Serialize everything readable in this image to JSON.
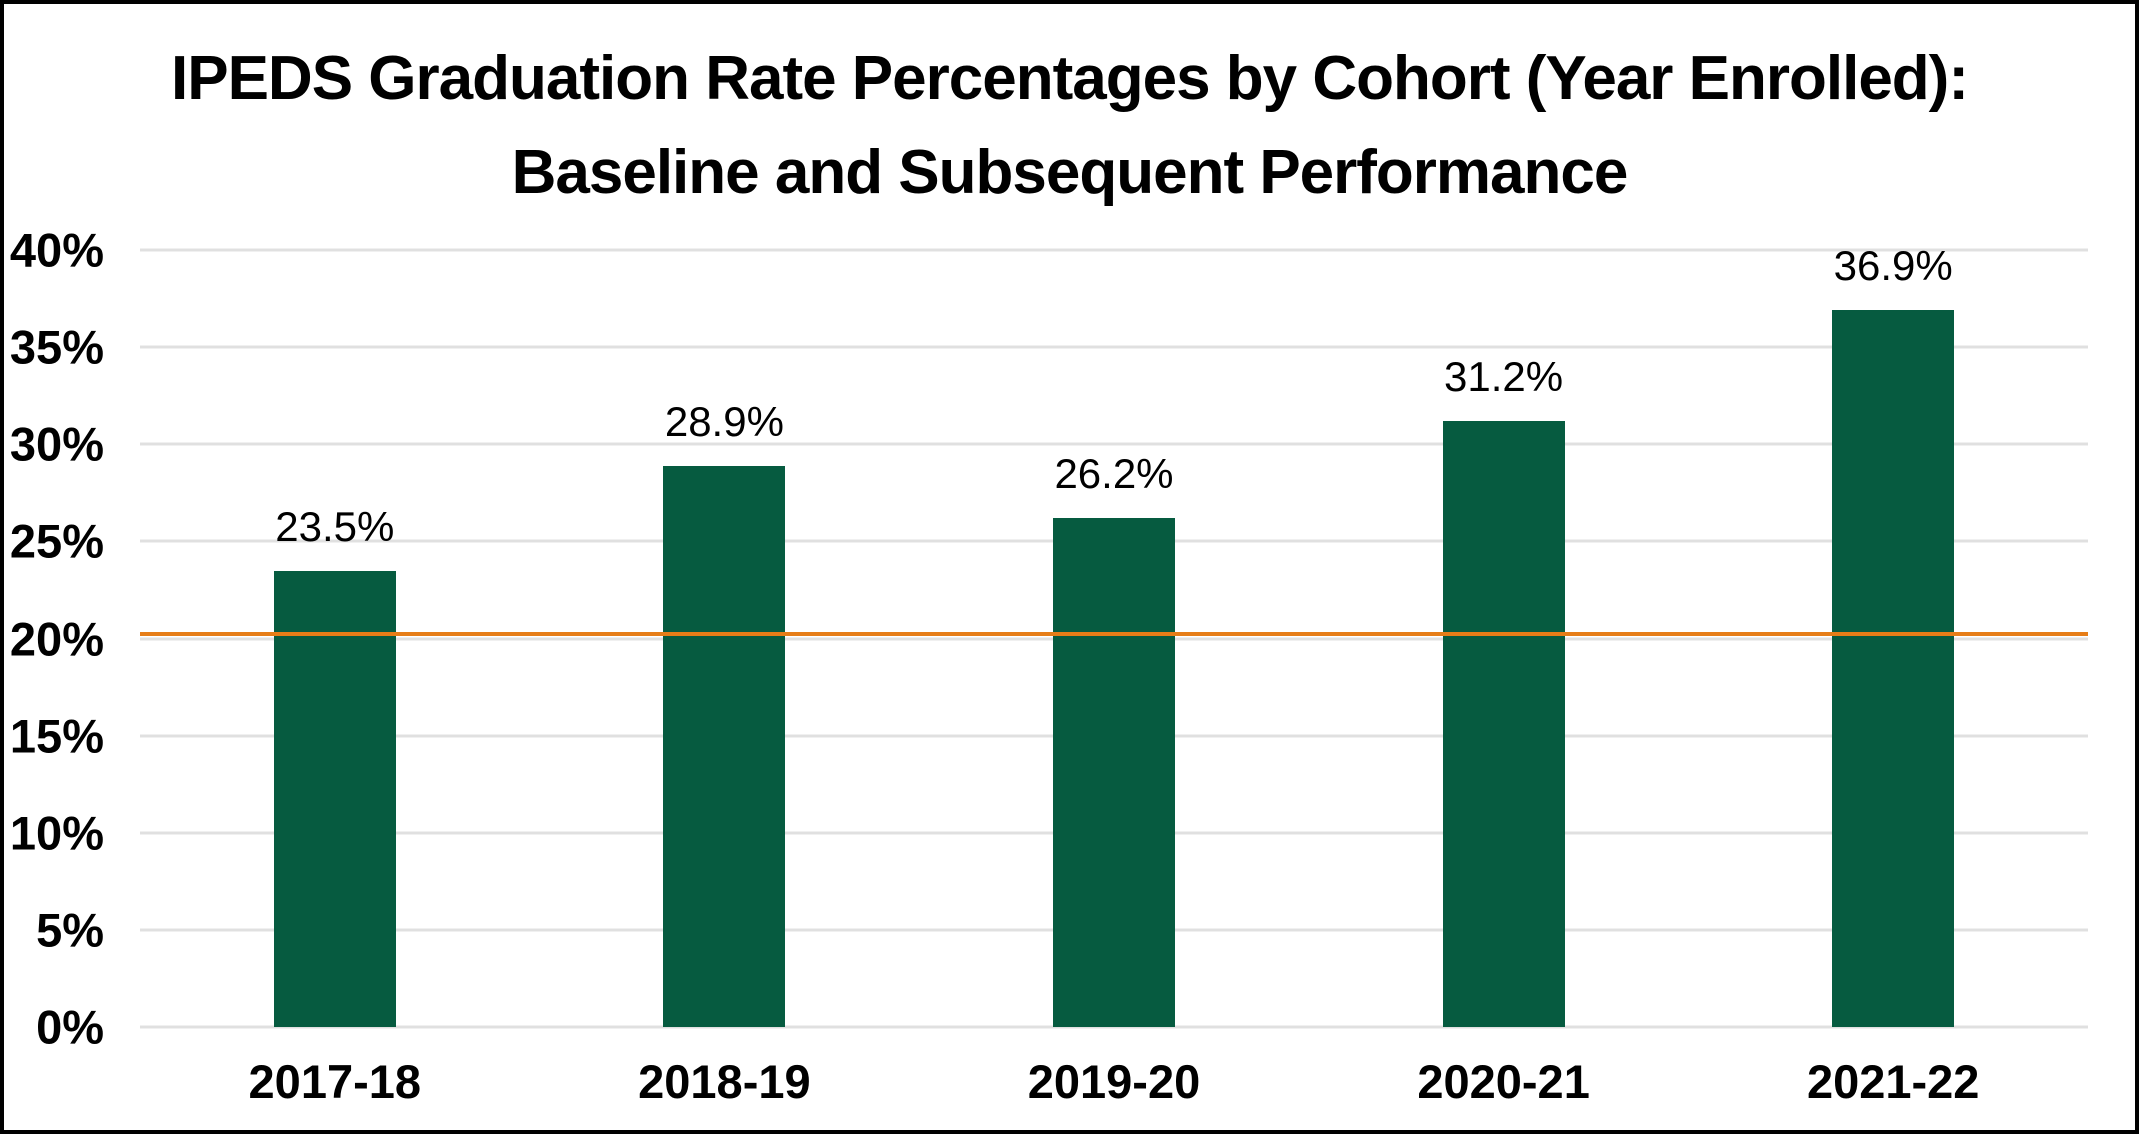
{
  "title": {
    "lines": [
      "IPEDS Graduation Rate Percentages by Cohort (Year Enrolled):",
      "Baseline and Subsequent Performance"
    ]
  },
  "chart_data": {
    "type": "bar",
    "title": "IPEDS Graduation Rate Percentages by Cohort (Year Enrolled): Baseline and Subsequent Performance",
    "categories": [
      "2017-18",
      "2018-19",
      "2019-20",
      "2020-21",
      "2021-22"
    ],
    "values": [
      23.5,
      28.9,
      26.2,
      31.2,
      36.9
    ],
    "data_labels": [
      "23.5%",
      "28.9%",
      "26.2%",
      "31.2%",
      "36.9%"
    ],
    "baseline_value": 20,
    "xlabel": "",
    "ylabel": "",
    "ylim": [
      0,
      40
    ],
    "ytick_step": 5,
    "ytick_labels": [
      "0%",
      "5%",
      "10%",
      "15%",
      "20%",
      "25%",
      "30%",
      "35%",
      "40%"
    ],
    "grid": "horizontal",
    "legend": "none"
  },
  "colors": {
    "bar": "#065b40",
    "baseline": "#e67d17",
    "gridline": "#e0e0e0",
    "text": "#000000",
    "background": "#ffffff",
    "border": "#000000"
  }
}
